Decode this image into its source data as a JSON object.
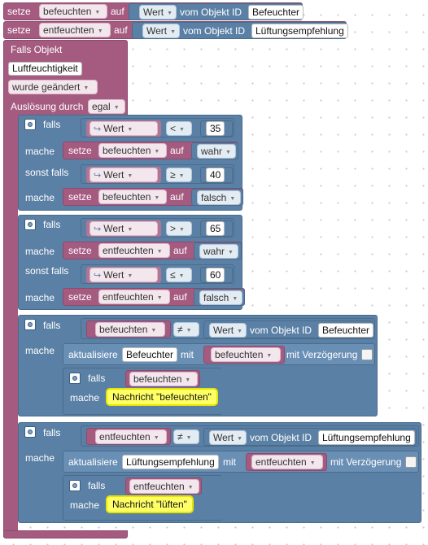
{
  "kw": {
    "setze": "setze",
    "auf": "auf",
    "vom_objekt_id": "vom Objekt ID",
    "falls_objekt": "Falls Objekt",
    "ausloesung_durch": "Auslösung durch",
    "falls": "falls",
    "mache": "mache",
    "sonst_falls": "sonst falls",
    "aktualisiere": "aktualisiere",
    "mit": "mit",
    "mit_verzoegerung": "mit Verzögerung"
  },
  "top": {
    "line1": {
      "var": "befeuchten",
      "attr": "Wert",
      "id": "Befeuchter"
    },
    "line2": {
      "var": "entfeuchten",
      "attr": "Wert",
      "id": "Lüftungsempfehlung"
    }
  },
  "trigger": {
    "object": "Luftfeuchtigkeit",
    "event": "wurde geändert",
    "cause": "egal"
  },
  "if1": {
    "cond1": {
      "attr": "Wert",
      "op": "<",
      "num": "35"
    },
    "do1": {
      "var": "befeuchten",
      "val": "wahr"
    },
    "cond2": {
      "attr": "Wert",
      "op": "≥",
      "num": "40"
    },
    "do2": {
      "var": "befeuchten",
      "val": "falsch"
    }
  },
  "if2": {
    "cond1": {
      "attr": "Wert",
      "op": ">",
      "num": "65"
    },
    "do1": {
      "var": "entfeuchten",
      "val": "wahr"
    },
    "cond2": {
      "attr": "Wert",
      "op": "≤",
      "num": "60"
    },
    "do2": {
      "var": "entfeuchten",
      "val": "falsch"
    }
  },
  "if3": {
    "var": "befeuchten",
    "op": "≠",
    "attr": "Wert",
    "id": "Befeuchter",
    "upd_id": "Befeuchter",
    "upd_var": "befeuchten",
    "inner_var": "befeuchten",
    "msg": "Nachricht \"befeuchten\""
  },
  "if4": {
    "var": "entfeuchten",
    "op": "≠",
    "attr": "Wert",
    "id": "Lüftungsempfehlung",
    "upd_id": "Lüftungsempfehlung",
    "upd_var": "entfeuchten",
    "inner_var": "entfeuchten",
    "msg": "Nachricht \"lüften\""
  },
  "colors": {
    "variable": "#a55b80",
    "logic": "#5b80a5",
    "message": "#ffff66"
  },
  "icons": {
    "gear": "gear-icon",
    "arrow": "↪",
    "dropdown": "▾"
  }
}
